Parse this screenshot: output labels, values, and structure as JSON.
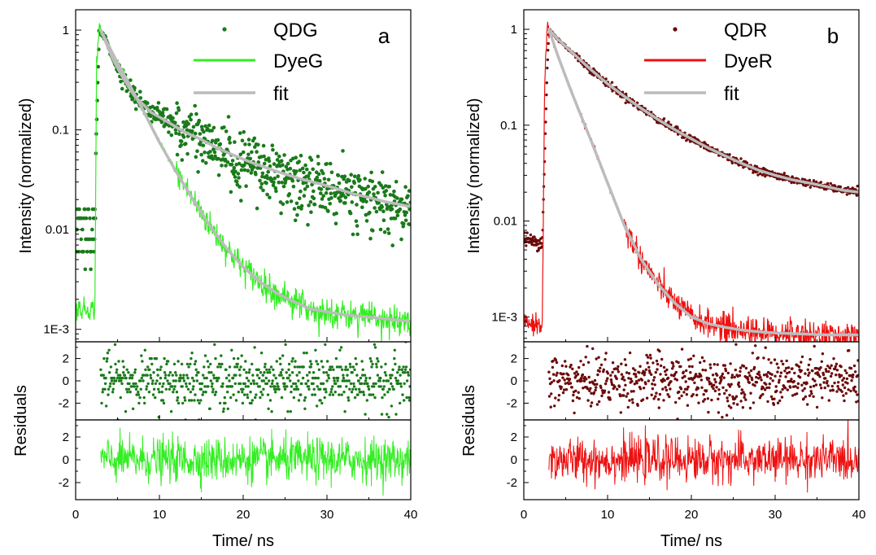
{
  "chart_data": [
    {
      "type": "scatter",
      "panel_letter": "a",
      "xlabel": "Time/ ns",
      "ylabel": "Intensity (normalized)",
      "xlim": [
        0,
        40
      ],
      "ylim": [
        0.00075,
        1.6
      ],
      "yscale": "log",
      "x_ticks": [
        "0",
        "10",
        "20",
        "30",
        "40"
      ],
      "y_ticks": [
        "1",
        "0.1",
        "0.01",
        "1E-3"
      ],
      "legend": [
        "QDG",
        "DyeG",
        "fit"
      ],
      "legend_position": "top-right",
      "colors": {
        "qd": "#1a7a1a",
        "dye": "#33ee22",
        "fit": "#bcbcbc"
      },
      "series": [
        {
          "name": "QDG",
          "style": "dots",
          "x": [
            2.2,
            2.8,
            3.5,
            4.5,
            5.5,
            7,
            9,
            11,
            13,
            15,
            17,
            19,
            21,
            23,
            25,
            27,
            29,
            31,
            33,
            35,
            37,
            40
          ],
          "y": [
            0.013,
            1.0,
            0.85,
            0.5,
            0.35,
            0.22,
            0.15,
            0.12,
            0.095,
            0.08,
            0.065,
            0.055,
            0.047,
            0.041,
            0.036,
            0.032,
            0.029,
            0.026,
            0.023,
            0.021,
            0.019,
            0.017
          ]
        },
        {
          "name": "DyeG",
          "style": "line",
          "x": [
            0,
            2.3,
            2.5,
            2.8,
            3,
            4,
            5,
            6,
            8,
            10,
            12,
            14,
            16,
            18,
            20,
            22,
            24,
            26,
            28,
            30,
            32,
            34,
            36,
            38,
            40
          ],
          "y": [
            0.0016,
            0.0016,
            0.5,
            1.0,
            0.95,
            0.68,
            0.47,
            0.33,
            0.16,
            0.075,
            0.038,
            0.02,
            0.011,
            0.0065,
            0.0042,
            0.003,
            0.0023,
            0.0019,
            0.0016,
            0.0015,
            0.0014,
            0.00135,
            0.0013,
            0.00125,
            0.0012
          ]
        },
        {
          "name": "fit",
          "style": "line",
          "x": [
            3,
            4,
            5,
            6,
            8,
            10,
            12,
            14,
            16,
            18,
            20,
            22,
            24,
            26,
            28,
            30,
            32,
            34,
            36,
            38,
            40
          ],
          "y": [
            1.0,
            0.68,
            0.47,
            0.33,
            0.16,
            0.075,
            0.038,
            0.02,
            0.011,
            0.0065,
            0.0042,
            0.003,
            0.0023,
            0.0019,
            0.0016,
            0.0015,
            0.0014,
            0.00135,
            0.0013,
            0.00125,
            0.0012
          ]
        },
        {
          "name": "fit",
          "style": "line",
          "x": [
            3,
            4.5,
            5.5,
            7,
            9,
            11,
            13,
            15,
            17,
            19,
            21,
            23,
            25,
            27,
            29,
            31,
            33,
            35,
            37,
            40
          ],
          "y": [
            1.0,
            0.5,
            0.35,
            0.22,
            0.15,
            0.12,
            0.095,
            0.08,
            0.065,
            0.055,
            0.047,
            0.041,
            0.036,
            0.032,
            0.029,
            0.026,
            0.023,
            0.021,
            0.019,
            0.017
          ]
        }
      ],
      "residuals": [
        {
          "ylabel": "Residuals",
          "y_ticks": [
            "2",
            "0",
            "-2"
          ],
          "ylim": [
            -3.5,
            3.5
          ],
          "x_range": [
            3,
            40
          ],
          "style": "dots",
          "color": "#1a7a1a"
        },
        {
          "ylabel": "Residuals",
          "y_ticks": [
            "2",
            "0",
            "-2"
          ],
          "ylim": [
            -3.5,
            3.5
          ],
          "x_range": [
            3,
            40
          ],
          "style": "line",
          "color": "#33ee22"
        }
      ]
    },
    {
      "type": "scatter",
      "panel_letter": "b",
      "xlabel": "Time/ ns",
      "ylabel": "Intensity (normalized)",
      "xlim": [
        0,
        40
      ],
      "ylim": [
        0.00055,
        1.6
      ],
      "yscale": "log",
      "x_ticks": [
        "0",
        "10",
        "20",
        "30",
        "40"
      ],
      "y_ticks": [
        "1",
        "0.1",
        "0.01",
        "1E-3"
      ],
      "legend": [
        "QDR",
        "DyeR",
        "fit"
      ],
      "legend_position": "top-right",
      "colors": {
        "qd": "#6b0a0a",
        "dye": "#ee1111",
        "fit": "#bcbcbc"
      },
      "series": [
        {
          "name": "QDR",
          "style": "dots",
          "x": [
            0,
            1.5,
            2.2,
            2.8,
            3,
            4,
            6,
            8,
            10,
            12,
            14,
            16,
            18,
            20,
            22,
            24,
            26,
            28,
            30,
            32,
            34,
            36,
            38,
            40
          ],
          "y": [
            0.0065,
            0.006,
            0.006,
            0.4,
            1.0,
            0.8,
            0.55,
            0.38,
            0.27,
            0.2,
            0.15,
            0.115,
            0.09,
            0.072,
            0.058,
            0.048,
            0.04,
            0.034,
            0.03,
            0.027,
            0.025,
            0.023,
            0.021,
            0.02
          ]
        },
        {
          "name": "DyeR",
          "style": "line",
          "x": [
            0,
            2.2,
            2.5,
            2.8,
            3,
            4,
            5,
            6,
            8,
            10,
            12,
            14,
            16,
            18,
            20,
            22,
            24,
            26,
            28,
            30,
            32,
            34,
            36,
            38,
            40
          ],
          "y": [
            0.00085,
            0.00085,
            0.3,
            1.0,
            0.95,
            0.55,
            0.32,
            0.19,
            0.07,
            0.025,
            0.009,
            0.004,
            0.0022,
            0.0014,
            0.001,
            0.00085,
            0.00078,
            0.00073,
            0.0007,
            0.00068,
            0.00067,
            0.00066,
            0.00065,
            0.00065,
            0.00065
          ]
        },
        {
          "name": "fit",
          "style": "line",
          "x": [
            3,
            4,
            5,
            6,
            8,
            10,
            12,
            14,
            16,
            18,
            20,
            22,
            24,
            26,
            28,
            30,
            32,
            34,
            36,
            38,
            40
          ],
          "y": [
            1.0,
            0.55,
            0.32,
            0.19,
            0.07,
            0.025,
            0.009,
            0.004,
            0.0022,
            0.0014,
            0.001,
            0.00085,
            0.00078,
            0.00073,
            0.0007,
            0.00068,
            0.00067,
            0.00066,
            0.00065,
            0.00065,
            0.00065
          ]
        },
        {
          "name": "fit",
          "style": "line",
          "x": [
            3,
            4,
            6,
            8,
            10,
            12,
            14,
            16,
            18,
            20,
            22,
            24,
            26,
            28,
            30,
            32,
            34,
            36,
            38,
            40
          ],
          "y": [
            1.0,
            0.8,
            0.55,
            0.38,
            0.27,
            0.2,
            0.15,
            0.115,
            0.09,
            0.072,
            0.058,
            0.048,
            0.04,
            0.034,
            0.03,
            0.027,
            0.025,
            0.023,
            0.021,
            0.02
          ]
        }
      ],
      "residuals": [
        {
          "ylabel": "Residuals",
          "y_ticks": [
            "2",
            "0",
            "-2"
          ],
          "ylim": [
            -3.5,
            3.5
          ],
          "x_range": [
            3,
            40
          ],
          "style": "dots",
          "color": "#6b0a0a"
        },
        {
          "ylabel": "Residuals",
          "y_ticks": [
            "2",
            "0",
            "-2"
          ],
          "ylim": [
            -3.5,
            3.5
          ],
          "x_range": [
            3,
            40
          ],
          "style": "line",
          "color": "#ee1111"
        }
      ]
    }
  ]
}
